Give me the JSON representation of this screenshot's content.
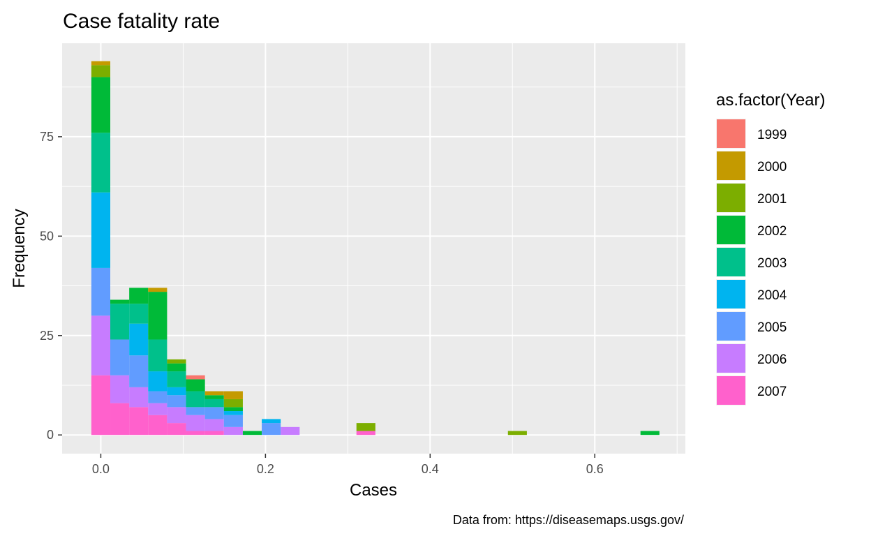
{
  "chart_data": {
    "type": "bar",
    "title": "Case fatality rate",
    "xlabel": "Cases",
    "ylabel": "Frequency",
    "caption": "Data from: https://diseasemaps.usgs.gov/",
    "xlim": [
      -0.047,
      0.71
    ],
    "ylim": [
      -4.7,
      98.5
    ],
    "xticks": [
      0.0,
      0.2,
      0.4,
      0.6
    ],
    "xtick_labels": [
      "0.0",
      "0.2",
      "0.4",
      "0.6"
    ],
    "yticks": [
      0,
      25,
      50,
      75
    ],
    "ytick_labels": [
      "0",
      "25",
      "50",
      "75"
    ],
    "grid": true,
    "bin_width": 0.023,
    "legend": {
      "title": "as.factor(Year)",
      "position": "right"
    },
    "series": [
      {
        "name": "1999",
        "color": "#F8766D"
      },
      {
        "name": "2000",
        "color": "#C49A00"
      },
      {
        "name": "2001",
        "color": "#7CAE00"
      },
      {
        "name": "2002",
        "color": "#00BA38"
      },
      {
        "name": "2003",
        "color": "#00C08B"
      },
      {
        "name": "2004",
        "color": "#00B4EF"
      },
      {
        "name": "2005",
        "color": "#619CFF"
      },
      {
        "name": "2006",
        "color": "#C77CFF"
      },
      {
        "name": "2007",
        "color": "#FF61CC"
      }
    ],
    "bins": [
      {
        "x": 0.0,
        "counts": [
          0,
          1,
          3,
          14,
          15,
          19,
          12,
          15,
          15
        ]
      },
      {
        "x": 0.023,
        "counts": [
          0,
          0,
          0,
          1,
          9,
          0,
          9,
          7,
          8
        ]
      },
      {
        "x": 0.046,
        "counts": [
          0,
          0,
          0,
          4,
          5,
          8,
          8,
          5,
          7
        ]
      },
      {
        "x": 0.069,
        "counts": [
          0,
          1,
          0,
          12,
          8,
          5,
          3,
          3,
          5
        ]
      },
      {
        "x": 0.092,
        "counts": [
          0,
          0,
          1,
          2,
          4,
          2,
          3,
          4,
          3
        ]
      },
      {
        "x": 0.115,
        "counts": [
          1,
          0,
          0,
          3,
          4,
          0,
          2,
          4,
          1
        ]
      },
      {
        "x": 0.138,
        "counts": [
          0,
          1,
          0,
          1,
          2,
          0,
          3,
          3,
          1
        ]
      },
      {
        "x": 0.161,
        "counts": [
          0,
          2,
          2,
          1,
          0,
          1,
          3,
          2,
          0
        ]
      },
      {
        "x": 0.184,
        "counts": [
          0,
          0,
          0,
          1,
          0,
          0,
          0,
          0,
          0
        ]
      },
      {
        "x": 0.207,
        "counts": [
          0,
          0,
          0,
          0,
          0,
          1,
          3,
          0,
          0
        ]
      },
      {
        "x": 0.23,
        "counts": [
          0,
          0,
          0,
          0,
          0,
          0,
          0,
          2,
          0
        ]
      },
      {
        "x": 0.322,
        "counts": [
          0,
          0,
          2,
          0,
          0,
          0,
          0,
          0,
          1
        ]
      },
      {
        "x": 0.506,
        "counts": [
          0,
          0,
          1,
          0,
          0,
          0,
          0,
          0,
          0
        ]
      },
      {
        "x": 0.667,
        "counts": [
          0,
          0,
          0,
          1,
          0,
          0,
          0,
          0,
          0
        ]
      }
    ]
  }
}
